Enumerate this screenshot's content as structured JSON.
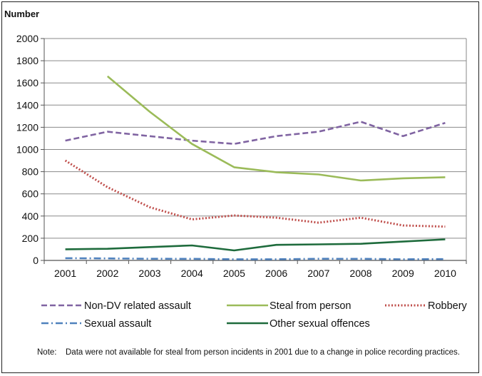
{
  "chart_data": {
    "type": "line",
    "ylabel": "Number",
    "xlabel": "",
    "ylim": [
      0,
      2000
    ],
    "yticks": [
      0,
      200,
      400,
      600,
      800,
      1000,
      1200,
      1400,
      1600,
      1800,
      2000
    ],
    "categories": [
      "2001",
      "2002",
      "2003",
      "2004",
      "2005",
      "2006",
      "2007",
      "2008",
      "2009",
      "2010"
    ],
    "grid": true,
    "legend_position": "bottom",
    "series": [
      {
        "name": "Non-DV related assault",
        "color": "#8064a2",
        "style": "dashed",
        "values": [
          1080,
          1160,
          1120,
          1080,
          1050,
          1120,
          1160,
          1250,
          1120,
          1240
        ]
      },
      {
        "name": "Steal from person",
        "color": "#9bbb59",
        "style": "solid",
        "values": [
          null,
          1660,
          1340,
          1050,
          840,
          795,
          775,
          720,
          740,
          750
        ]
      },
      {
        "name": "Robbery",
        "color": "#c0504d",
        "style": "dotted",
        "values": [
          900,
          660,
          480,
          370,
          405,
          385,
          340,
          385,
          315,
          305
        ]
      },
      {
        "name": "Sexual assault",
        "color": "#4f81bd",
        "style": "dashdot",
        "values": [
          20,
          18,
          15,
          14,
          10,
          10,
          15,
          14,
          10,
          12
        ]
      },
      {
        "name": "Other sexual offences",
        "color": "#1e6b3c",
        "style": "solid",
        "values": [
          100,
          105,
          120,
          135,
          90,
          140,
          145,
          150,
          170,
          190
        ]
      }
    ]
  },
  "note": {
    "label": "Note:",
    "text": "Data were not available for steal from person incidents in 2001 due to a change in police recording practices."
  }
}
